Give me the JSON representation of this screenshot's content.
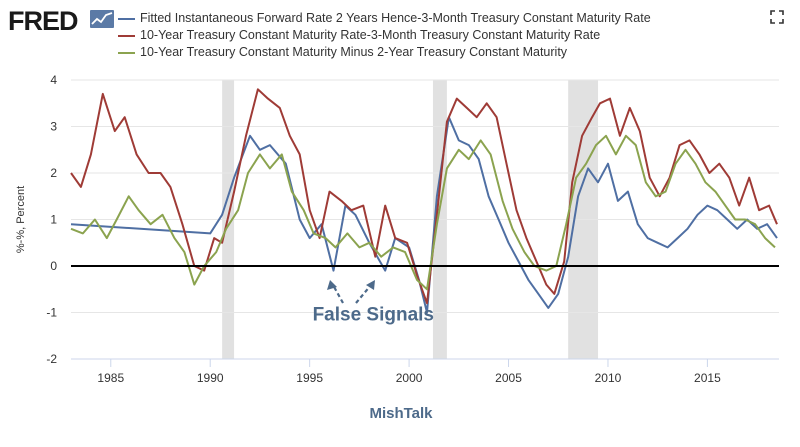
{
  "brand": {
    "logo_text": "FRED"
  },
  "colors": {
    "series1": "#4f6fa3",
    "series2": "#9f3b36",
    "series3": "#8ba34f",
    "recession": "#e1e1e1",
    "zero_line": "#000000",
    "annotation": "#4d6a8a"
  },
  "icons": {
    "logo_mark": "chart-line-icon",
    "expand": "expand-icon"
  },
  "chart_data": {
    "type": "line",
    "ylabel": "%-%, Percent",
    "xlim": [
      1983,
      2018.6
    ],
    "ylim": [
      -2,
      4
    ],
    "yticks": [
      -2,
      -1,
      0,
      1,
      2,
      3,
      4
    ],
    "ytick_labels": [
      "-2",
      "-1",
      "0",
      "1",
      "2",
      "3",
      "4"
    ],
    "xticks": [
      1985,
      1990,
      1995,
      2000,
      2005,
      2010,
      2015
    ],
    "xtick_labels": [
      "1985",
      "1990",
      "1995",
      "2000",
      "2005",
      "2010",
      "2015"
    ],
    "grid": true,
    "legend_position": "top",
    "recessions": [
      [
        1990.6,
        1991.2
      ],
      [
        2001.2,
        2001.9
      ],
      [
        2008.0,
        2009.5
      ]
    ],
    "series": [
      {
        "name": "Fitted Instantaneous Forward Rate 2 Years Hence-3-Month Treasury Constant Maturity Rate",
        "x": [
          1983.0,
          1990.0,
          1990.6,
          1991.2,
          1992.0,
          1992.5,
          1993.0,
          1993.8,
          1994.5,
          1995.0,
          1995.6,
          1996.2,
          1996.8,
          1997.3,
          1998.0,
          1998.8,
          1999.3,
          2000.0,
          2000.5,
          2000.9,
          2001.4,
          2002.0,
          2002.5,
          2003.0,
          2003.5,
          2004.0,
          2004.5,
          2005.0,
          2005.5,
          2006.0,
          2006.5,
          2007.0,
          2007.5,
          2008.0,
          2008.5,
          2009.0,
          2009.5,
          2010.0,
          2010.5,
          2011.0,
          2011.5,
          2012.0,
          2012.5,
          2013.0,
          2013.5,
          2014.0,
          2014.5,
          2015.0,
          2015.5,
          2016.0,
          2016.5,
          2017.0,
          2017.5,
          2018.0,
          2018.5
        ],
        "y": [
          0.9,
          0.7,
          1.1,
          1.9,
          2.8,
          2.5,
          2.6,
          2.2,
          1.0,
          0.6,
          0.9,
          -0.1,
          1.3,
          1.1,
          0.5,
          -0.1,
          0.6,
          0.4,
          -0.3,
          -1.0,
          1.5,
          3.2,
          2.7,
          2.6,
          2.3,
          1.5,
          1.0,
          0.5,
          0.1,
          -0.3,
          -0.6,
          -0.9,
          -0.6,
          0.2,
          1.5,
          2.1,
          1.8,
          2.2,
          1.4,
          1.6,
          0.9,
          0.6,
          0.5,
          0.4,
          0.6,
          0.8,
          1.1,
          1.3,
          1.2,
          1.0,
          0.8,
          1.0,
          0.8,
          0.9,
          0.6
        ]
      },
      {
        "name": "10-Year Treasury Constant Maturity Rate-3-Month Treasury Constant Maturity Rate",
        "x": [
          1983.0,
          1983.5,
          1984.0,
          1984.6,
          1985.2,
          1985.7,
          1986.3,
          1986.9,
          1987.5,
          1988.0,
          1988.6,
          1989.2,
          1989.7,
          1990.2,
          1990.6,
          1991.2,
          1991.8,
          1992.4,
          1992.9,
          1993.5,
          1994.0,
          1994.5,
          1995.0,
          1995.5,
          1996.0,
          1996.6,
          1997.1,
          1997.7,
          1998.3,
          1998.8,
          1999.3,
          1999.9,
          2000.4,
          2000.9,
          2001.4,
          2001.9,
          2002.4,
          2002.9,
          2003.4,
          2003.9,
          2004.4,
          2004.9,
          2005.4,
          2005.9,
          2006.4,
          2006.9,
          2007.3,
          2007.8,
          2008.2,
          2008.7,
          2009.2,
          2009.6,
          2010.1,
          2010.6,
          2011.1,
          2011.6,
          2012.1,
          2012.6,
          2013.1,
          2013.6,
          2014.1,
          2014.6,
          2015.1,
          2015.6,
          2016.1,
          2016.6,
          2017.1,
          2017.6,
          2018.1,
          2018.5
        ],
        "y": [
          2.0,
          1.7,
          2.4,
          3.7,
          2.9,
          3.2,
          2.4,
          2.0,
          2.0,
          1.7,
          0.9,
          0.0,
          -0.1,
          0.6,
          0.5,
          1.6,
          2.8,
          3.8,
          3.6,
          3.4,
          2.8,
          2.4,
          1.2,
          0.6,
          1.6,
          1.4,
          1.2,
          1.3,
          0.2,
          1.3,
          0.6,
          0.5,
          -0.2,
          -0.8,
          1.1,
          3.1,
          3.6,
          3.4,
          3.2,
          3.5,
          3.2,
          2.2,
          1.2,
          0.6,
          0.1,
          -0.4,
          -0.6,
          0.1,
          1.8,
          2.8,
          3.2,
          3.5,
          3.6,
          2.8,
          3.4,
          2.9,
          1.9,
          1.5,
          1.9,
          2.6,
          2.7,
          2.4,
          2.0,
          2.2,
          1.9,
          1.3,
          1.9,
          1.2,
          1.3,
          0.9
        ]
      },
      {
        "name": "10-Year Treasury Constant Maturity Minus 2-Year Treasury Constant Maturity",
        "x": [
          1983.0,
          1983.6,
          1984.2,
          1984.8,
          1985.3,
          1985.9,
          1986.4,
          1987.0,
          1987.6,
          1988.2,
          1988.7,
          1989.2,
          1989.7,
          1990.3,
          1990.8,
          1991.4,
          1991.9,
          1992.5,
          1993.0,
          1993.6,
          1994.1,
          1994.7,
          1995.2,
          1995.8,
          1996.3,
          1996.9,
          1997.5,
          1998.0,
          1998.6,
          1999.2,
          1999.8,
          2000.4,
          2000.9,
          2001.4,
          2001.9,
          2002.5,
          2003.0,
          2003.6,
          2004.1,
          2004.7,
          2005.2,
          2005.8,
          2006.3,
          2006.9,
          2007.4,
          2007.9,
          2008.4,
          2008.9,
          2009.4,
          2009.9,
          2010.4,
          2010.9,
          2011.4,
          2011.9,
          2012.4,
          2012.9,
          2013.4,
          2013.9,
          2014.4,
          2014.9,
          2015.4,
          2015.9,
          2016.4,
          2016.9,
          2017.4,
          2017.9,
          2018.4
        ],
        "y": [
          0.8,
          0.7,
          1.0,
          0.6,
          1.0,
          1.5,
          1.2,
          0.9,
          1.1,
          0.6,
          0.3,
          -0.4,
          0.0,
          0.3,
          0.8,
          1.2,
          2.0,
          2.4,
          2.1,
          2.4,
          1.6,
          1.2,
          0.7,
          0.6,
          0.4,
          0.7,
          0.4,
          0.5,
          0.2,
          0.4,
          0.3,
          -0.3,
          -0.5,
          0.9,
          2.1,
          2.5,
          2.3,
          2.7,
          2.4,
          1.4,
          0.8,
          0.3,
          0.0,
          -0.1,
          0.0,
          0.9,
          1.9,
          2.2,
          2.6,
          2.8,
          2.4,
          2.8,
          2.6,
          1.8,
          1.5,
          1.6,
          2.2,
          2.5,
          2.2,
          1.8,
          1.6,
          1.3,
          1.0,
          1.0,
          0.9,
          0.6,
          0.4
        ]
      }
    ],
    "annotations": [
      {
        "text": "False Signals",
        "x": 1998.2,
        "y": -1.17
      }
    ],
    "footer": "MishTalk"
  }
}
